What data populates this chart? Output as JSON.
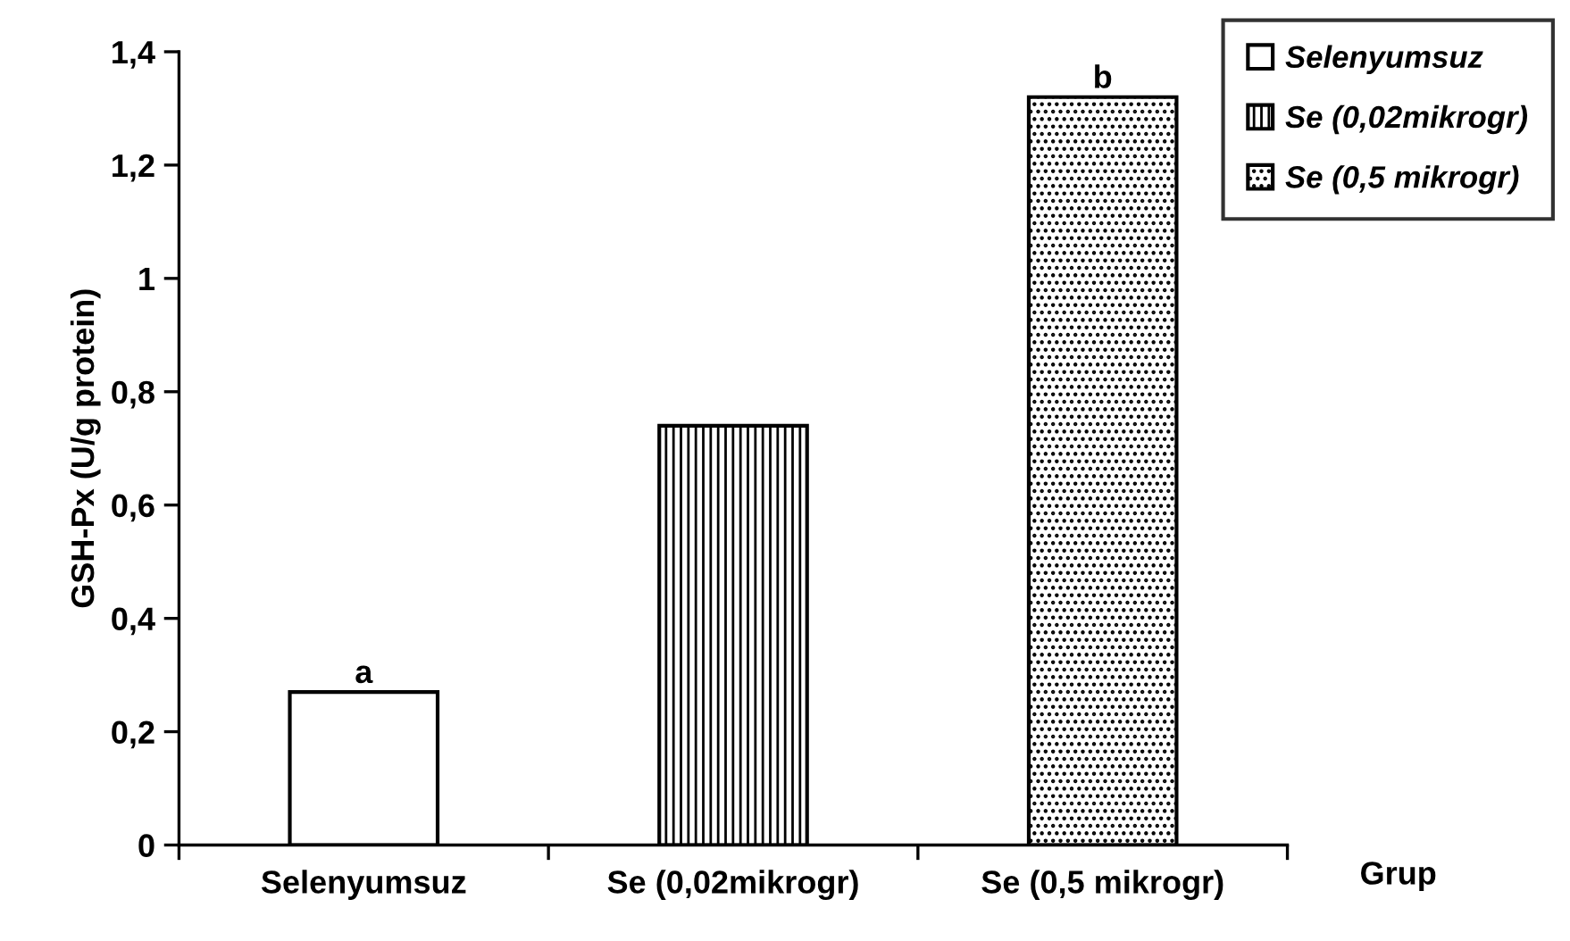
{
  "chart_data": {
    "type": "bar",
    "ylabel": "GSH-Px (U/g protein)",
    "xlabel": "Grup",
    "categories": [
      "Selenyumsuz",
      "Se (0,02mikrogr)",
      "Se (0,5 mikrogr)"
    ],
    "series": [
      {
        "name": "Selenyumsuz",
        "color": "#ffffff",
        "values": [
          0.27,
          null,
          null
        ]
      },
      {
        "name": "Se (0,02mikrogr)",
        "color": "#000000",
        "values": [
          null,
          0.74,
          null
        ]
      },
      {
        "name": "Se (0,5 mikrogr)",
        "color": "#000000",
        "values": [
          null,
          null,
          1.32
        ]
      }
    ],
    "ylim": [
      0,
      1.4
    ],
    "yticks": [
      0,
      {
        "value": 0.2,
        "label": "0,2"
      },
      {
        "value": 0.4,
        "label": "0,4"
      },
      {
        "value": 0.6,
        "label": "0,6"
      },
      {
        "value": 0.8,
        "label": "0,8"
      },
      1,
      {
        "value": 1.2,
        "label": "1,2"
      },
      {
        "value": 1.4,
        "label": "1,4"
      }
    ],
    "annotations": [
      {
        "text": "a",
        "x": "Selenyumsuz",
        "y": 0.27
      },
      {
        "text": "b",
        "x": "Se (0,5 mikrogr)",
        "y": 1.32
      }
    ],
    "legend": "top right",
    "grid": false
  }
}
